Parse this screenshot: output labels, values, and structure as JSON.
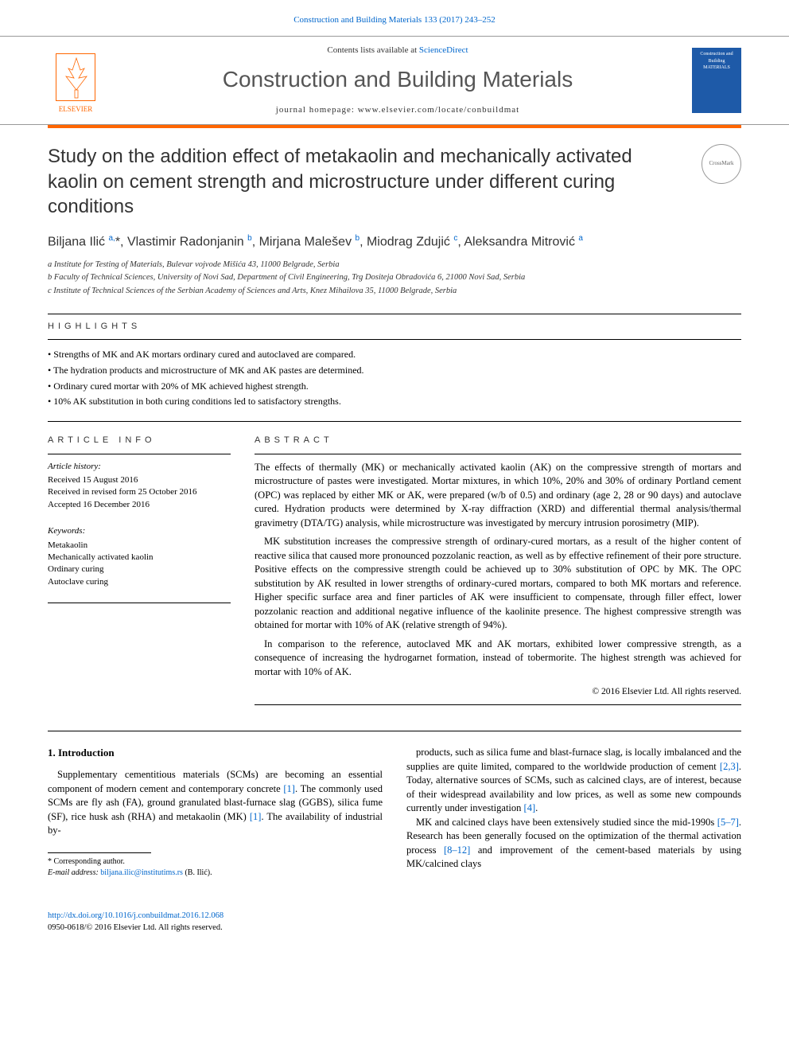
{
  "header": {
    "citation": "Construction and Building Materials 133 (2017) 243–252",
    "contents_prefix": "Contents lists available at ",
    "contents_link": "ScienceDirect",
    "journal_name": "Construction and Building Materials",
    "homepage_prefix": "journal homepage: ",
    "homepage_url": "www.elsevier.com/locate/conbuildmat",
    "publisher": "ELSEVIER",
    "cover_text": "Construction and Building MATERIALS"
  },
  "article": {
    "title": "Study on the addition effect of metakaolin and mechanically activated kaolin on cement strength and microstructure under different curing conditions",
    "crossmark": "CrossMark",
    "authors_html": "Biljana Ilić <sup>a,</sup>*, Vlastimir Radonjanin <sup>b</sup>, Mirjana Malešev <sup>b</sup>, Miodrag Zdujić <sup>c</sup>, Aleksandra Mitrović <sup>a</sup>",
    "affiliations": [
      "a Institute for Testing of Materials, Bulevar vojvode Mišića 43, 11000 Belgrade, Serbia",
      "b Faculty of Technical Sciences, University of Novi Sad, Department of Civil Engineering, Trg Dositeja Obradovića 6, 21000 Novi Sad, Serbia",
      "c Institute of Technical Sciences of the Serbian Academy of Sciences and Arts, Knez Mihailova 35, 11000 Belgrade, Serbia"
    ]
  },
  "highlights": {
    "heading": "highlights",
    "items": [
      "Strengths of MK and AK mortars ordinary cured and autoclaved are compared.",
      "The hydration products and microstructure of MK and AK pastes are determined.",
      "Ordinary cured mortar with 20% of MK achieved highest strength.",
      "10% AK substitution in both curing conditions led to satisfactory strengths."
    ]
  },
  "info": {
    "heading": "article info",
    "history_label": "Article history:",
    "received": "Received 15 August 2016",
    "revised": "Received in revised form 25 October 2016",
    "accepted": "Accepted 16 December 2016",
    "keywords_label": "Keywords:",
    "keywords": [
      "Metakaolin",
      "Mechanically activated kaolin",
      "Ordinary curing",
      "Autoclave curing"
    ]
  },
  "abstract": {
    "heading": "abstract",
    "p1": "The effects of thermally (MK) or mechanically activated kaolin (AK) on the compressive strength of mortars and microstructure of pastes were investigated. Mortar mixtures, in which 10%, 20% and 30% of ordinary Portland cement (OPC) was replaced by either MK or AK, were prepared (w/b of 0.5) and ordinary (age 2, 28 or 90 days) and autoclave cured. Hydration products were determined by X-ray diffraction (XRD) and differential thermal analysis/thermal gravimetry (DTA/TG) analysis, while microstructure was investigated by mercury intrusion porosimetry (MIP).",
    "p2": "MK substitution increases the compressive strength of ordinary-cured mortars, as a result of the higher content of reactive silica that caused more pronounced pozzolanic reaction, as well as by effective refinement of their pore structure. Positive effects on the compressive strength could be achieved up to 30% substitution of OPC by MK. The OPC substitution by AK resulted in lower strengths of ordinary-cured mortars, compared to both MK mortars and reference. Higher specific surface area and finer particles of AK were insufficient to compensate, through filler effect, lower pozzolanic reaction and additional negative influence of the kaolinite presence. The highest compressive strength was obtained for mortar with 10% of AK (relative strength of 94%).",
    "p3": "In comparison to the reference, autoclaved MK and AK mortars, exhibited lower compressive strength, as a consequence of increasing the hydrogarnet formation, instead of tobermorite. The highest strength was achieved for mortar with 10% of AK.",
    "copyright": "© 2016 Elsevier Ltd. All rights reserved."
  },
  "intro": {
    "heading": "1. Introduction",
    "left": "Supplementary cementitious materials (SCMs) are becoming an essential component of modern cement and contemporary concrete [1]. The commonly used SCMs are fly ash (FA), ground granulated blast-furnace slag (GGBS), silica fume (SF), rice husk ash (RHA) and metakaolin (MK) [1]. The availability of industrial by-",
    "right_p1": "products, such as silica fume and blast-furnace slag, is locally imbalanced and the supplies are quite limited, compared to the worldwide production of cement [2,3]. Today, alternative sources of SCMs, such as calcined clays, are of interest, because of their widespread availability and low prices, as well as some new compounds currently under investigation [4].",
    "right_p2": "MK and calcined clays have been extensively studied since the mid-1990s [5–7]. Research has been generally focused on the optimization of the thermal activation process [8–12] and improvement of the cement-based materials by using MK/calcined clays"
  },
  "footnote": {
    "corresponding": "* Corresponding author.",
    "email_label": "E-mail address: ",
    "email": "biljana.ilic@institutims.rs",
    "email_suffix": " (B. Ilić)."
  },
  "doi": {
    "url": "http://dx.doi.org/10.1016/j.conbuildmat.2016.12.068",
    "issn": "0950-0618/© 2016 Elsevier Ltd. All rights reserved."
  },
  "colors": {
    "link": "#0066cc",
    "accent": "#ff6600",
    "text": "#000000",
    "cover_bg": "#1e5aa8"
  }
}
